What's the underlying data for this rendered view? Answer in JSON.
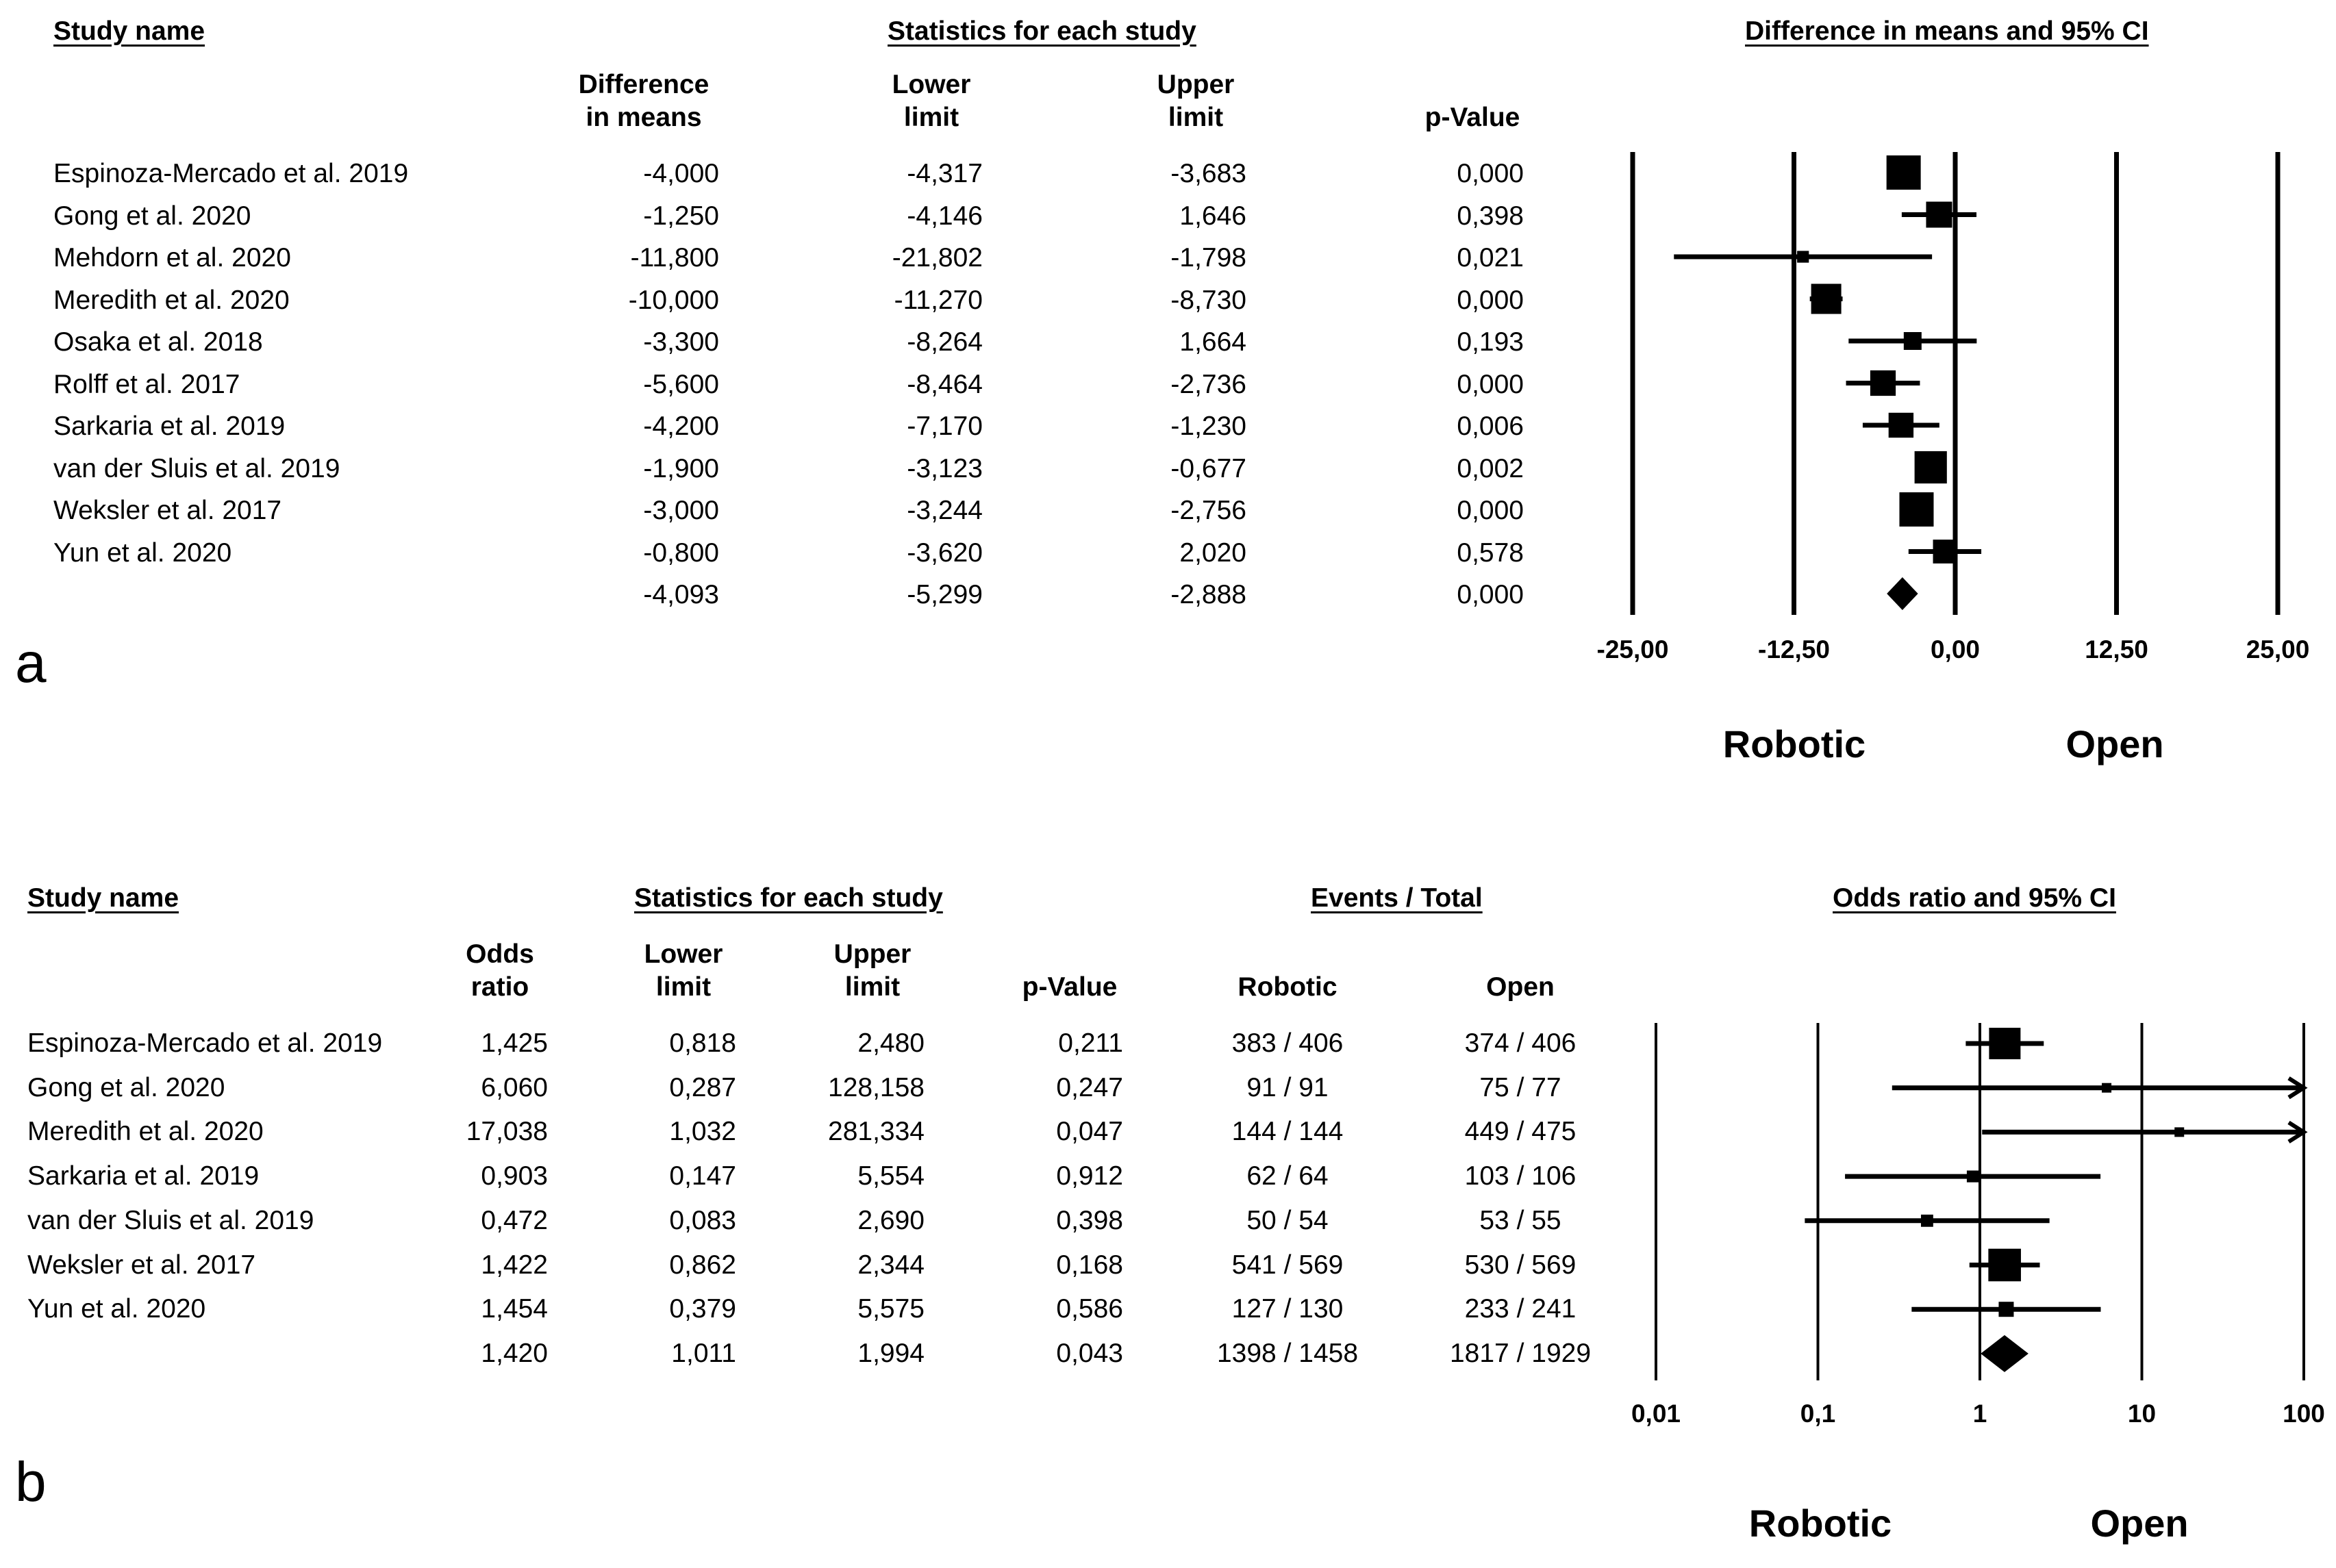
{
  "chart_data": [
    {
      "type": "forest",
      "panel_label": "a",
      "headers": {
        "study": "Study name",
        "stats_group": "Statistics for each study",
        "plot_title": "Difference in means and 95% CI",
        "effect_line1": "Difference",
        "effect_line2": "in means",
        "lower_line1": "Lower",
        "lower_line2": "limit",
        "upper_line1": "Upper",
        "upper_line2": "limit",
        "pvalue": "p-Value"
      },
      "rows": [
        {
          "study": "Espinoza-Mercado et al. 2019",
          "effect": "-4,000",
          "lower": "-4,317",
          "upper": "-3,683",
          "p": "0,000",
          "e": -4.0,
          "lo": -4.317,
          "hi": -3.683,
          "weight": 1.0
        },
        {
          "study": "Gong et al. 2020",
          "effect": "-1,250",
          "lower": "-4,146",
          "upper": "1,646",
          "p": "0,398",
          "e": -1.25,
          "lo": -4.146,
          "hi": 1.646,
          "weight": 0.7
        },
        {
          "study": "Mehdorn et al. 2020",
          "effect": "-11,800",
          "lower": "-21,802",
          "upper": "-1,798",
          "p": "0,021",
          "e": -11.8,
          "lo": -21.802,
          "hi": -1.798,
          "weight": 0.18
        },
        {
          "study": "Meredith et al. 2020",
          "effect": "-10,000",
          "lower": "-11,270",
          "upper": "-8,730",
          "p": "0,000",
          "e": -10.0,
          "lo": -11.27,
          "hi": -8.73,
          "weight": 0.85
        },
        {
          "study": "Osaka et al. 2018",
          "effect": "-3,300",
          "lower": "-8,264",
          "upper": "1,664",
          "p": "0,193",
          "e": -3.3,
          "lo": -8.264,
          "hi": 1.664,
          "weight": 0.4
        },
        {
          "study": "Rolff et al. 2017",
          "effect": "-5,600",
          "lower": "-8,464",
          "upper": "-2,736",
          "p": "0,000",
          "e": -5.6,
          "lo": -8.464,
          "hi": -2.736,
          "weight": 0.68
        },
        {
          "study": "Sarkaria et al. 2019",
          "effect": "-4,200",
          "lower": "-7,170",
          "upper": "-1,230",
          "p": "0,006",
          "e": -4.2,
          "lo": -7.17,
          "hi": -1.23,
          "weight": 0.66
        },
        {
          "study": "van der Sluis et al. 2019",
          "effect": "-1,900",
          "lower": "-3,123",
          "upper": "-0,677",
          "p": "0,002",
          "e": -1.9,
          "lo": -3.123,
          "hi": -0.677,
          "weight": 0.93
        },
        {
          "study": "Weksler et al. 2017",
          "effect": "-3,000",
          "lower": "-3,244",
          "upper": "-2,756",
          "p": "0,000",
          "e": -3.0,
          "lo": -3.244,
          "hi": -2.756,
          "weight": 1.0
        },
        {
          "study": "Yun et al. 2020",
          "effect": "-0,800",
          "lower": "-3,620",
          "upper": "2,020",
          "p": "0,578",
          "e": -0.8,
          "lo": -3.62,
          "hi": 2.02,
          "weight": 0.62
        }
      ],
      "summary": {
        "effect": "-4,093",
        "lower": "-5,299",
        "upper": "-2,888",
        "p": "0,000",
        "e": -4.093,
        "lo": -5.299,
        "hi": -2.888
      },
      "x_scale": "linear",
      "xlim": [
        -25,
        25
      ],
      "x_ticks": [
        {
          "value": -25,
          "label": "-25,00"
        },
        {
          "value": -12.5,
          "label": "-12,50"
        },
        {
          "value": 0,
          "label": "0,00"
        },
        {
          "value": 12.5,
          "label": "12,50"
        },
        {
          "value": 25,
          "label": "25,00"
        }
      ],
      "favours_left": "Robotic",
      "favours_right": "Open"
    },
    {
      "type": "forest",
      "panel_label": "b",
      "headers": {
        "study": "Study name",
        "stats_group": "Statistics for each study",
        "events_group": "Events / Total",
        "plot_title": "Odds ratio and 95% CI",
        "effect_line1": "Odds",
        "effect_line2": "ratio",
        "lower_line1": "Lower",
        "lower_line2": "limit",
        "upper_line1": "Upper",
        "upper_line2": "limit",
        "pvalue": "p-Value",
        "robotic": "Robotic",
        "open": "Open"
      },
      "rows": [
        {
          "study": "Espinoza-Mercado et al. 2019",
          "effect": "1,425",
          "lower": "0,818",
          "upper": "2,480",
          "p": "0,211",
          "robotic": "383 / 406",
          "open": "374 / 406",
          "e": 1.425,
          "lo": 0.818,
          "hi": 2.48,
          "weight": 1.0
        },
        {
          "study": "Gong et al. 2020",
          "effect": "6,060",
          "lower": "0,287",
          "upper": "128,158",
          "p": "0,247",
          "robotic": "91 / 91",
          "open": "75 / 77",
          "e": 6.06,
          "lo": 0.287,
          "hi": 128.158,
          "weight": 0.0
        },
        {
          "study": "Meredith et al. 2020",
          "effect": "17,038",
          "lower": "1,032",
          "upper": "281,334",
          "p": "0,047",
          "robotic": "144 / 144",
          "open": "449 / 475",
          "e": 17.038,
          "lo": 1.032,
          "hi": 281.334,
          "weight": 0.0
        },
        {
          "study": "Sarkaria et al. 2019",
          "effect": "0,903",
          "lower": "0,147",
          "upper": "5,554",
          "p": "0,912",
          "robotic": "62 / 64",
          "open": "103 / 106",
          "e": 0.903,
          "lo": 0.147,
          "hi": 5.554,
          "weight": 0.1
        },
        {
          "study": "van der Sluis et al. 2019",
          "effect": "0,472",
          "lower": "0,083",
          "upper": "2,690",
          "p": "0,398",
          "robotic": "50 / 54",
          "open": "53 / 55",
          "e": 0.472,
          "lo": 0.083,
          "hi": 2.69,
          "weight": 0.12
        },
        {
          "study": "Weksler et al. 2017",
          "effect": "1,422",
          "lower": "0,862",
          "upper": "2,344",
          "p": "0,168",
          "robotic": "541 / 569",
          "open": "530 / 569",
          "e": 1.422,
          "lo": 0.862,
          "hi": 2.344,
          "weight": 1.05
        },
        {
          "study": "Yun et al. 2020",
          "effect": "1,454",
          "lower": "0,379",
          "upper": "5,575",
          "p": "0,586",
          "robotic": "127 / 130",
          "open": "233 / 241",
          "e": 1.454,
          "lo": 0.379,
          "hi": 5.575,
          "weight": 0.25
        }
      ],
      "summary": {
        "effect": "1,420",
        "lower": "1,011",
        "upper": "1,994",
        "p": "0,043",
        "robotic": "1398 / 1458",
        "open": "1817 / 1929",
        "e": 1.42,
        "lo": 1.011,
        "hi": 1.994
      },
      "x_scale": "log",
      "xlim": [
        0.01,
        100
      ],
      "x_ticks": [
        {
          "value": 0.01,
          "label": "0,01"
        },
        {
          "value": 0.1,
          "label": "0,1"
        },
        {
          "value": 1,
          "label": "1"
        },
        {
          "value": 10,
          "label": "10"
        },
        {
          "value": 100,
          "label": "100"
        }
      ],
      "favours_left": "Robotic",
      "favours_right": "Open"
    }
  ]
}
